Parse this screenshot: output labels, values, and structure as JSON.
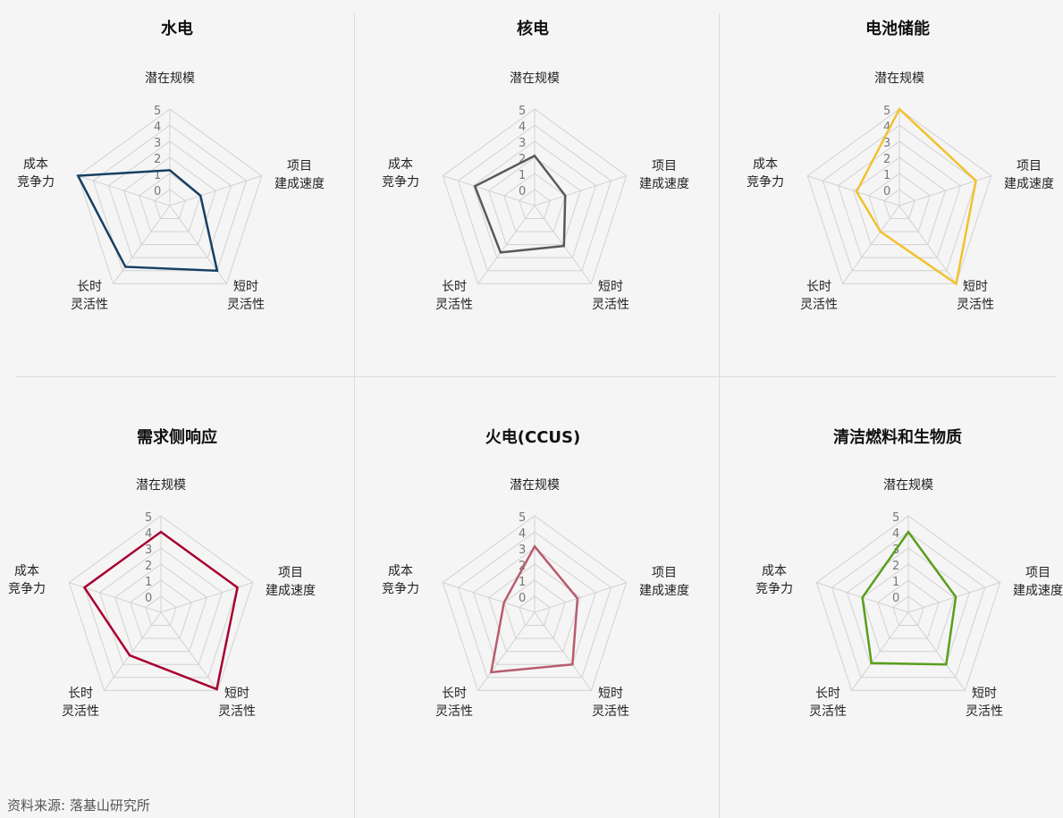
{
  "source": "资料来源: 落基山研究所",
  "chart_data": [
    {
      "type": "radar",
      "title": "水电",
      "axes": [
        [
          "潜在规模"
        ],
        [
          "项目",
          "建成速度"
        ],
        [
          "短时",
          "灵活性"
        ],
        [
          "长时",
          "灵活性"
        ],
        [
          "成本",
          "竞争力"
        ]
      ],
      "ticks": [
        "0",
        "1",
        "2",
        "3",
        "4",
        "5"
      ],
      "range": [
        0,
        5
      ],
      "values": [
        1.2,
        1.0,
        4.0,
        3.7,
        5.0
      ],
      "color": "#173f63"
    },
    {
      "type": "radar",
      "title": "核电",
      "axes": [
        [
          "潜在规模"
        ],
        [
          "项目",
          "建成速度"
        ],
        [
          "短时",
          "灵活性"
        ],
        [
          "长时",
          "灵活性"
        ],
        [
          "成本",
          "竞争力"
        ]
      ],
      "ticks": [
        "0",
        "1",
        "2",
        "3",
        "4",
        "5"
      ],
      "range": [
        0,
        5
      ],
      "values": [
        2.1,
        1.0,
        2.1,
        2.6,
        2.9
      ],
      "color": "#595959"
    },
    {
      "type": "radar",
      "title": "电池储能",
      "axes": [
        [
          "潜在规模"
        ],
        [
          "项目",
          "建成速度"
        ],
        [
          "短时",
          "灵活性"
        ],
        [
          "长时",
          "灵活性"
        ],
        [
          "成本",
          "竞争力"
        ]
      ],
      "ticks": [
        "0",
        "1",
        "2",
        "3",
        "4",
        "5"
      ],
      "range": [
        0,
        5
      ],
      "values": [
        5.0,
        4.0,
        5.0,
        1.0,
        1.8
      ],
      "color": "#f2c12e"
    },
    {
      "type": "radar",
      "title": "需求侧响应",
      "axes": [
        [
          "潜在规模"
        ],
        [
          "项目",
          "建成速度"
        ],
        [
          "短时",
          "灵活性"
        ],
        [
          "长时",
          "灵活性"
        ],
        [
          "成本",
          "竞争力"
        ]
      ],
      "ticks": [
        "0",
        "1",
        "2",
        "3",
        "4",
        "5"
      ],
      "range": [
        0,
        5
      ],
      "values": [
        4.0,
        4.0,
        4.9,
        2.3,
        4.0
      ],
      "color": "#a8002f"
    },
    {
      "type": "radar",
      "title": "火电(CCUS)",
      "axes": [
        [
          "潜在规模"
        ],
        [
          "项目",
          "建成速度"
        ],
        [
          "短时",
          "灵活性"
        ],
        [
          "长时",
          "灵活性"
        ],
        [
          "成本",
          "竞争力"
        ]
      ],
      "ticks": [
        "0",
        "1",
        "2",
        "3",
        "4",
        "5"
      ],
      "range": [
        0,
        5
      ],
      "values": [
        3.1,
        1.8,
        3.0,
        3.6,
        1.0
      ],
      "color": "#b85c6e"
    },
    {
      "type": "radar",
      "title": "清洁燃料和生物质",
      "axes": [
        [
          "潜在规模"
        ],
        [
          "项目",
          "建成速度"
        ],
        [
          "短时",
          "灵活性"
        ],
        [
          "长时",
          "灵活性"
        ],
        [
          "成本",
          "竞争力"
        ]
      ],
      "ticks": [
        "0",
        "1",
        "2",
        "3",
        "4",
        "5"
      ],
      "range": [
        0,
        5
      ],
      "values": [
        4.0,
        2.1,
        3.0,
        2.9,
        2.0
      ],
      "color": "#5a9e1c"
    }
  ]
}
